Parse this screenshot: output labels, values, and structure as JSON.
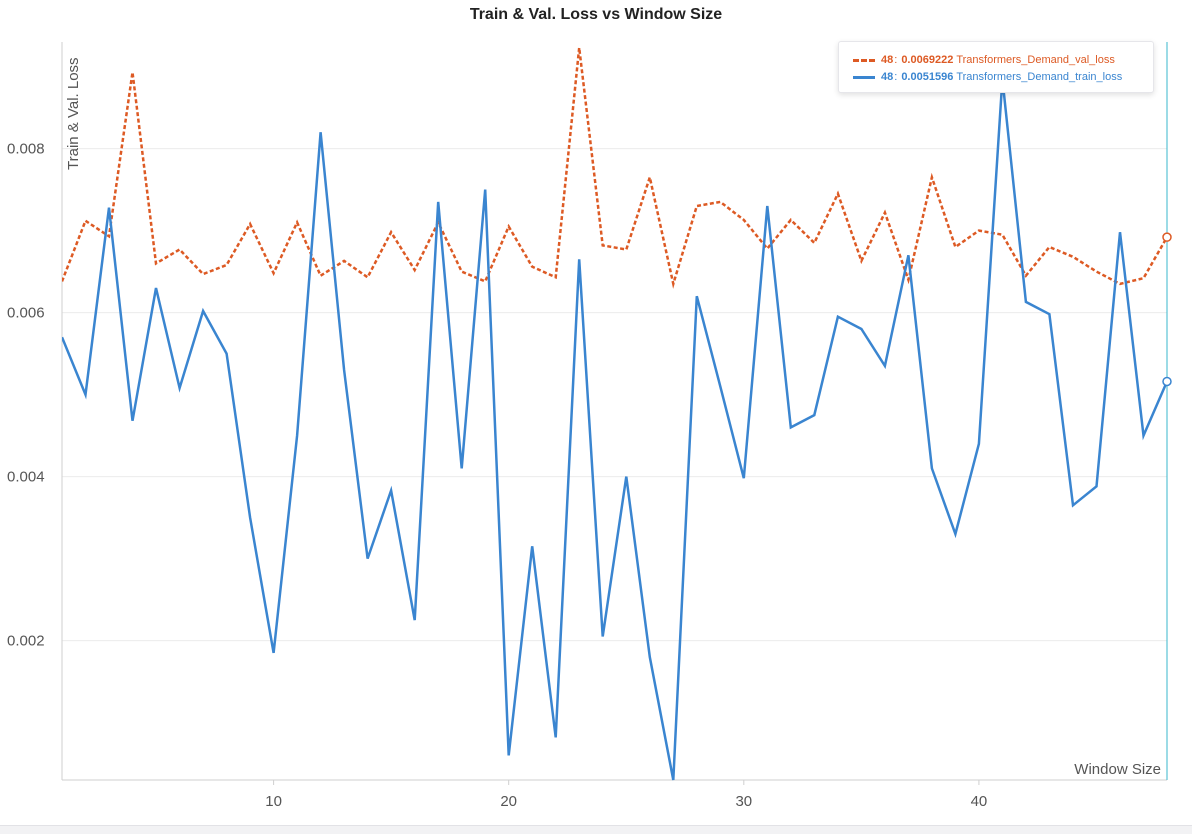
{
  "chart_data": {
    "type": "line",
    "title": "Train & Val. Loss vs Window Size",
    "xlabel": "Window Size",
    "ylabel": "Train & Val. Loss",
    "xlim": [
      1,
      48
    ],
    "ylim": [
      0.0003,
      0.0093
    ],
    "x_ticks": [
      10,
      20,
      30,
      40
    ],
    "y_ticks": [
      0.002,
      0.004,
      0.006,
      0.008
    ],
    "y_tick_labels": [
      "0.002",
      "0.004",
      "0.006",
      "0.008"
    ],
    "grid": true,
    "legend_position": "top-right",
    "x": [
      1,
      2,
      3,
      4,
      5,
      6,
      7,
      8,
      9,
      10,
      11,
      12,
      13,
      14,
      15,
      16,
      17,
      18,
      19,
      20,
      21,
      22,
      23,
      24,
      25,
      26,
      27,
      28,
      29,
      30,
      31,
      32,
      33,
      34,
      35,
      36,
      37,
      38,
      39,
      40,
      41,
      42,
      43,
      44,
      45,
      46,
      47,
      48
    ],
    "series": [
      {
        "name": "Transformers_Demand_val_loss",
        "color": "#dd5a24",
        "style": "dashed",
        "values": [
          0.00638,
          0.00712,
          0.00693,
          0.00893,
          0.0066,
          0.00677,
          0.00647,
          0.00658,
          0.00708,
          0.00648,
          0.0071,
          0.00645,
          0.00663,
          0.00643,
          0.00698,
          0.00652,
          0.0071,
          0.0065,
          0.00638,
          0.00705,
          0.00656,
          0.00643,
          0.00923,
          0.00682,
          0.00677,
          0.00765,
          0.00635,
          0.0073,
          0.00735,
          0.00713,
          0.00678,
          0.00713,
          0.00685,
          0.00745,
          0.00663,
          0.00722,
          0.0064,
          0.00765,
          0.0068,
          0.007,
          0.00695,
          0.00645,
          0.0068,
          0.00668,
          0.0065,
          0.00635,
          0.00642,
          0.00692
        ]
      },
      {
        "name": "Transformers_Demand_train_loss",
        "color": "#3a85d0",
        "style": "solid",
        "values": [
          0.0057,
          0.005,
          0.00728,
          0.00468,
          0.0063,
          0.00508,
          0.00602,
          0.0055,
          0.0035,
          0.00185,
          0.0045,
          0.0082,
          0.0053,
          0.003,
          0.00383,
          0.00225,
          0.00735,
          0.0041,
          0.0075,
          0.0006,
          0.00315,
          0.00082,
          0.00665,
          0.00205,
          0.004,
          0.0018,
          0.0003,
          0.0062,
          0.0051,
          0.00398,
          0.0073,
          0.0046,
          0.00475,
          0.00595,
          0.0058,
          0.00535,
          0.0067,
          0.0041,
          0.0033,
          0.0044,
          0.00885,
          0.00613,
          0.00598,
          0.00365,
          0.00388,
          0.00698,
          0.0045,
          0.00516
        ]
      }
    ],
    "legend": [
      {
        "step": "48",
        "value": "0.0069222",
        "label": "Transformers_Demand_val_loss",
        "color": "#dd5a24"
      },
      {
        "step": "48",
        "value": "0.0051596",
        "label": "Transformers_Demand_train_loss",
        "color": "#3a85d0"
      }
    ]
  }
}
